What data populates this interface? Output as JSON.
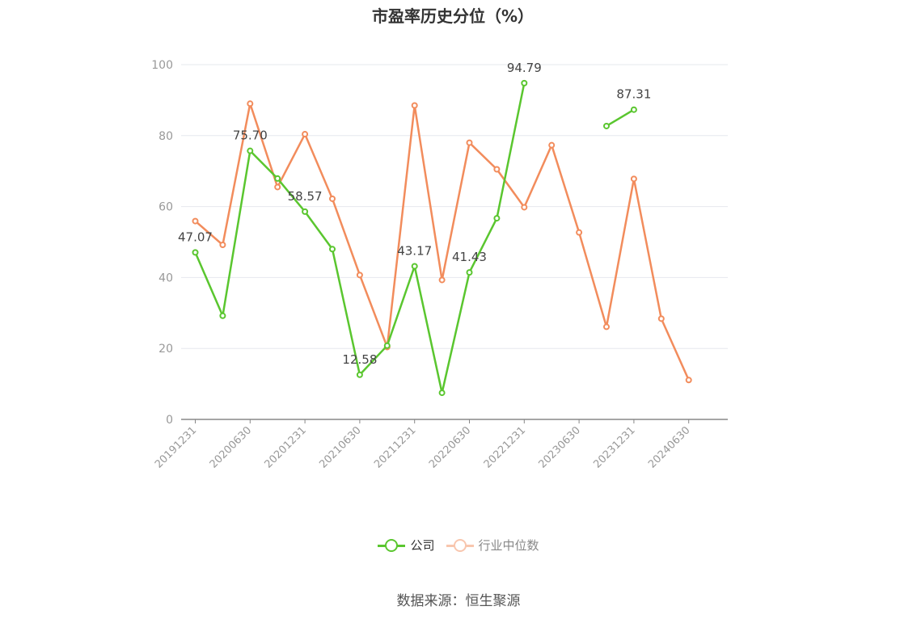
{
  "chart_data": {
    "type": "line",
    "title": "市盈率历史分位（%）",
    "categories": [
      "20191231",
      "20200331",
      "20200630",
      "20200930",
      "20201231",
      "20210331",
      "20210630",
      "20210930",
      "20211231",
      "20220331",
      "20220630",
      "20220930",
      "20221231",
      "20230331",
      "20230630",
      "20230930",
      "20231231",
      "20240331",
      "20240630"
    ],
    "tick_labels": [
      "20191231",
      "20200630",
      "20201231",
      "20210630",
      "20211231",
      "20220630",
      "20221231",
      "20230630",
      "20231231",
      "20240630"
    ],
    "y_ticks": [
      0,
      20,
      40,
      60,
      80,
      100
    ],
    "ylim": [
      0,
      100
    ],
    "grid": true,
    "legend_position": "bottom",
    "series": [
      {
        "name": "公司",
        "color": "#5ac62f",
        "values": [
          47.07,
          29.2,
          75.7,
          67.9,
          58.57,
          48.0,
          12.58,
          20.8,
          43.17,
          7.5,
          41.43,
          56.7,
          94.79,
          null,
          null,
          82.7,
          87.31,
          null,
          null
        ],
        "data_labels": {
          "0": "47.07",
          "2": "75.70",
          "4": "58.57",
          "6": "12.58",
          "8": "43.17",
          "10": "41.43",
          "12": "94.79",
          "16": "87.31"
        }
      },
      {
        "name": "行业中位数",
        "color": "#f28c5c",
        "values": [
          55.9,
          49.2,
          89.0,
          65.5,
          80.4,
          62.2,
          40.7,
          20.4,
          88.5,
          39.3,
          78.0,
          70.5,
          59.8,
          77.3,
          52.7,
          26.1,
          67.8,
          28.4,
          11.1
        ]
      }
    ]
  },
  "legend": {
    "company_label": "公司",
    "industry_label": "行业中位数"
  },
  "source": "数据来源：恒生聚源"
}
